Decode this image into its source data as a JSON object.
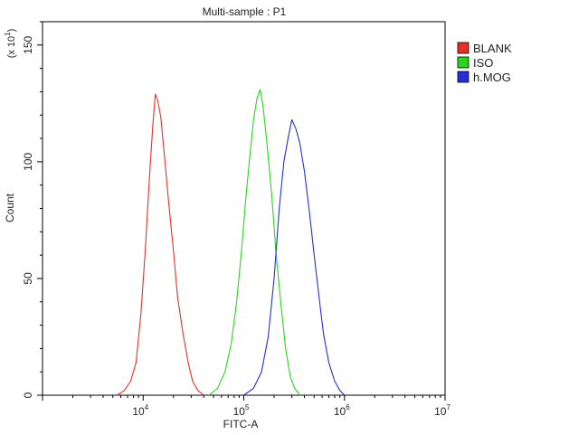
{
  "chart_data": {
    "type": "line",
    "title": "Multi-sample : P1",
    "xlabel": "FITC-A",
    "ylabel": "Count",
    "y_multiplier_label": "(x 10",
    "y_multiplier_exp": "1",
    "x_scale": "log",
    "xlim": [
      1000,
      10000000
    ],
    "ylim": [
      0,
      160
    ],
    "x_ticks": [
      {
        "base": "10",
        "exp": "4",
        "value": 10000
      },
      {
        "base": "10",
        "exp": "5",
        "value": 100000
      },
      {
        "base": "10",
        "exp": "6",
        "value": 1000000
      },
      {
        "base": "10",
        "exp": "7",
        "value": 10000000
      }
    ],
    "y_ticks": [
      "0",
      "50",
      "100",
      "150"
    ],
    "y_tick_values": [
      0,
      50,
      100,
      150
    ],
    "legend_position": "top-right",
    "series": [
      {
        "name": "BLANK",
        "color": "#e8302a",
        "x": [
          5500,
          6500,
          7500,
          8500,
          9500,
          10500,
          11500,
          12500,
          13200,
          14000,
          15000,
          16500,
          18000,
          20000,
          22000,
          25000,
          28000,
          31000,
          35000,
          40000
        ],
        "y": [
          0,
          2,
          6,
          14,
          35,
          62,
          92,
          116,
          129,
          126,
          119,
          100,
          82,
          62,
          42,
          26,
          14,
          6,
          2,
          0
        ]
      },
      {
        "name": "ISO",
        "color": "#29d61f",
        "x": [
          45000,
          55000,
          65000,
          75000,
          85000,
          95000,
          105000,
          115000,
          125000,
          135000,
          145000,
          155000,
          170000,
          190000,
          210000,
          235000,
          260000,
          290000,
          320000,
          360000
        ],
        "y": [
          0,
          3,
          10,
          22,
          40,
          62,
          85,
          103,
          118,
          127,
          131,
          124,
          108,
          85,
          60,
          38,
          20,
          8,
          3,
          0
        ]
      },
      {
        "name": "h.MOG",
        "color": "#2430d6",
        "x": [
          100000,
          125000,
          150000,
          175000,
          200000,
          225000,
          250000,
          275000,
          300000,
          330000,
          360000,
          400000,
          450000,
          500000,
          560000,
          620000,
          700000,
          800000,
          900000,
          1000000
        ],
        "y": [
          0,
          3,
          10,
          25,
          50,
          80,
          100,
          110,
          118,
          114,
          108,
          96,
          78,
          60,
          42,
          26,
          14,
          6,
          2,
          0
        ]
      }
    ]
  }
}
